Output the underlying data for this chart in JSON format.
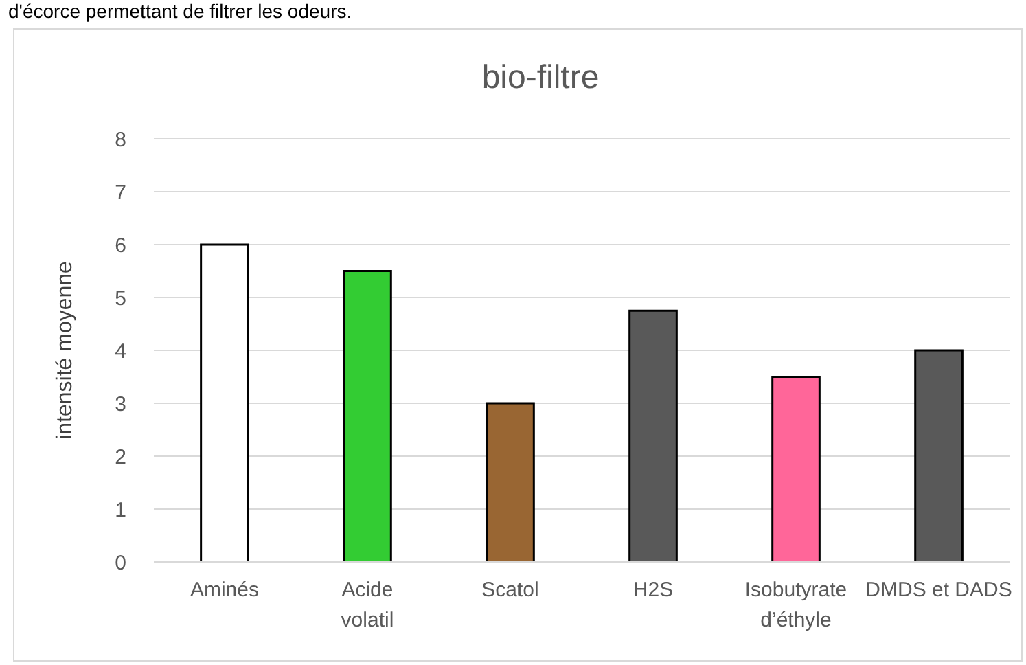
{
  "chart_data": {
    "type": "bar",
    "title": "bio-filtre",
    "ylabel": "intensité moyenne",
    "categories": [
      "Aminés",
      "Acide volatil",
      "Scatol",
      "H2S",
      "Isobutyrate d’éthyle",
      "DMDS et DADS"
    ],
    "values": [
      6,
      5.5,
      3,
      4.75,
      3.5,
      4
    ],
    "colors": [
      "#ffffff",
      "#33cc33",
      "#996633",
      "#595959",
      "#ff6699",
      "#595959"
    ],
    "ylim": [
      0,
      8
    ],
    "yticks": [
      0,
      1,
      2,
      3,
      4,
      5,
      6,
      7,
      8
    ],
    "grid": "y",
    "annotations": [
      "d'écorce permettant de filtrer les odeurs."
    ]
  }
}
